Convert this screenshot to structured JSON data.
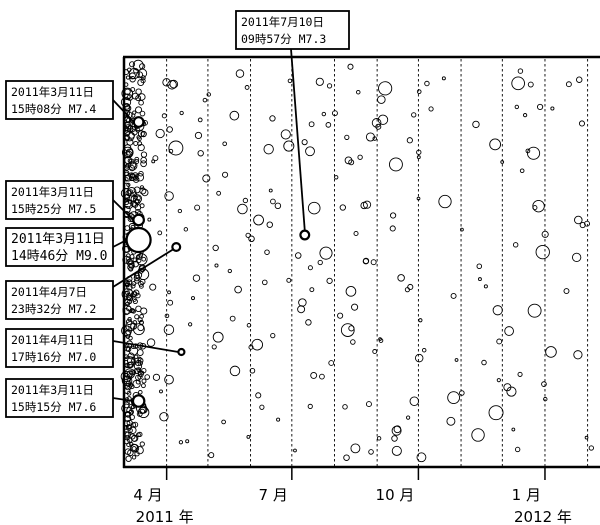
{
  "chart_data": {
    "type": "scatter",
    "title": "",
    "xlabel": "",
    "ylabel": "",
    "xlim": [
      "2011-03-01",
      "2012-02-10"
    ],
    "grid": true,
    "x_ticks": [
      {
        "date": "2011-04-01",
        "label": "4 月"
      },
      {
        "date": "2011-07-01",
        "label": "7 月"
      },
      {
        "date": "2011-10-01",
        "label": "10 月"
      },
      {
        "date": "2012-01-01",
        "label": "1 月"
      }
    ],
    "year_labels": [
      {
        "date": "2011-04-01",
        "label": "2011 年"
      },
      {
        "date": "2012-01-01",
        "label": "2012 年"
      }
    ],
    "gridline_dates": [
      "2011-04-01",
      "2011-05-01",
      "2011-06-01",
      "2011-07-01",
      "2011-08-01",
      "2011-09-01",
      "2011-10-01",
      "2011-11-01",
      "2011-12-01",
      "2012-01-01",
      "2012-02-01"
    ],
    "highlighted_events": [
      {
        "date": "2011-03-11",
        "time": "14:46",
        "mag": 9.0,
        "line1": "2011年3月11日",
        "line2": "14時46分 M9.0"
      },
      {
        "date": "2011-03-11",
        "time": "15:08",
        "mag": 7.4,
        "line1": "2011年3月11日",
        "line2": "15時08分 M7.4"
      },
      {
        "date": "2011-03-11",
        "time": "15:15",
        "mag": 7.6,
        "line1": "2011年3月11日",
        "line2": "15時15分 M7.6"
      },
      {
        "date": "2011-03-11",
        "time": "15:25",
        "mag": 7.5,
        "line1": "2011年3月11日",
        "line2": "15時25分 M7.5"
      },
      {
        "date": "2011-04-07",
        "time": "23:32",
        "mag": 7.2,
        "line1": "2011年4月7日",
        "line2": "23時32分 M7.2"
      },
      {
        "date": "2011-04-11",
        "time": "17:16",
        "mag": 7.0,
        "line1": "2011年4月11日",
        "line2": "17時16分 M7.0"
      },
      {
        "date": "2011-07-10",
        "time": "09:57",
        "mag": 7.3,
        "line1": "2011年7月10日",
        "line2": "09時57分 M7.3"
      }
    ]
  }
}
